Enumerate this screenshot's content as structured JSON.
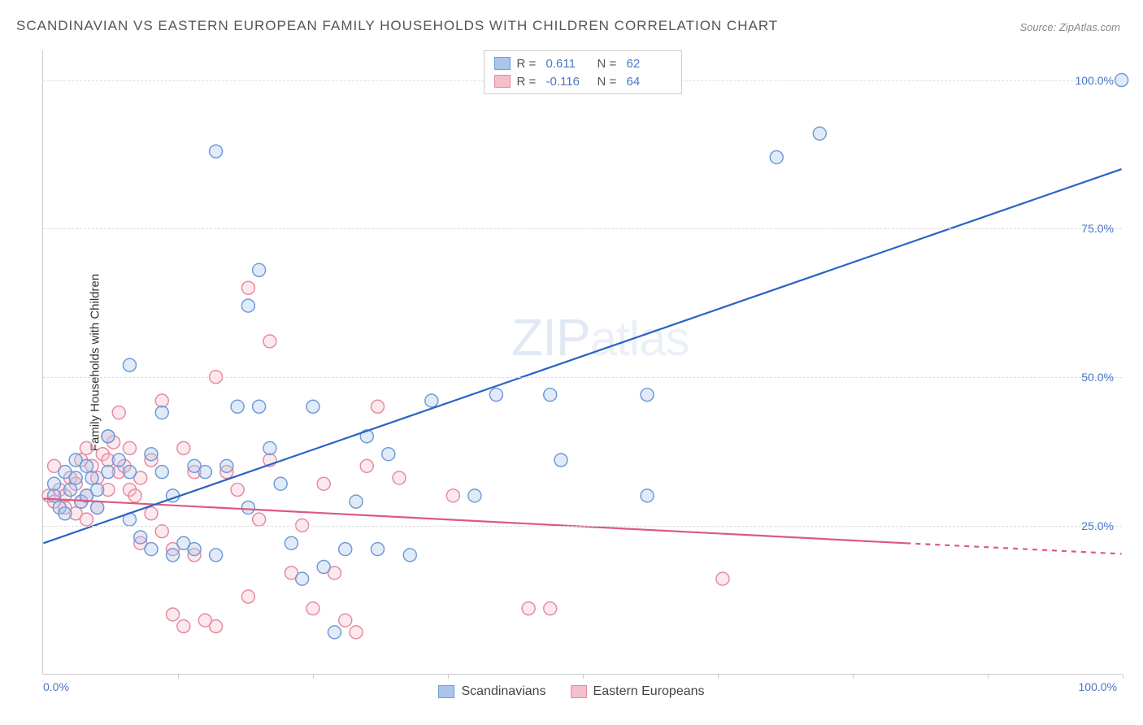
{
  "title": "SCANDINAVIAN VS EASTERN EUROPEAN FAMILY HOUSEHOLDS WITH CHILDREN CORRELATION CHART",
  "source": "Source: ZipAtlas.com",
  "ylabel": "Family Households with Children",
  "watermark_main": "ZIP",
  "watermark_suffix": "atlas",
  "chart": {
    "type": "scatter",
    "xlim": [
      0,
      100
    ],
    "ylim": [
      0,
      105
    ],
    "xtick_labels": {
      "min": "0.0%",
      "max": "100.0%"
    },
    "xtick_positions": [
      0,
      12.5,
      25,
      37.5,
      50,
      62.5,
      75,
      87.5,
      100
    ],
    "ytick_positions": [
      25,
      50,
      75,
      100
    ],
    "ytick_labels": [
      "25.0%",
      "50.0%",
      "75.0%",
      "100.0%"
    ],
    "grid_color": "#dddddd",
    "background_color": "#ffffff",
    "marker_radius": 8,
    "marker_stroke_width": 1.5,
    "marker_fill_opacity": 0.35,
    "line_width": 2.2
  },
  "series": {
    "scandinavians": {
      "label": "Scandinavians",
      "color_fill": "#a9c5ea",
      "color_stroke": "#6f9bd8",
      "line_color": "#2a63c4",
      "r_label": "R =",
      "r_value": "0.611",
      "n_label": "N =",
      "n_value": "62",
      "trend": {
        "x1": 0,
        "y1": 22,
        "x2": 100,
        "y2": 85,
        "dashed": false
      },
      "points": [
        [
          1,
          30
        ],
        [
          1,
          32
        ],
        [
          1.5,
          28
        ],
        [
          2,
          34
        ],
        [
          2,
          27
        ],
        [
          2.5,
          31
        ],
        [
          3,
          33
        ],
        [
          3,
          36
        ],
        [
          3.5,
          29
        ],
        [
          4,
          35
        ],
        [
          4,
          30
        ],
        [
          4.5,
          33
        ],
        [
          5,
          31
        ],
        [
          5,
          28
        ],
        [
          6,
          34
        ],
        [
          6,
          40
        ],
        [
          7,
          36
        ],
        [
          8,
          34
        ],
        [
          8,
          26
        ],
        [
          9,
          23
        ],
        [
          10,
          21
        ],
        [
          10,
          37
        ],
        [
          11,
          34
        ],
        [
          12,
          20
        ],
        [
          12,
          30
        ],
        [
          13,
          22
        ],
        [
          14,
          21
        ],
        [
          14,
          35
        ],
        [
          15,
          34
        ],
        [
          16,
          20
        ],
        [
          16,
          88
        ],
        [
          17,
          35
        ],
        [
          18,
          45
        ],
        [
          19,
          28
        ],
        [
          19,
          62
        ],
        [
          20,
          68
        ],
        [
          20,
          45
        ],
        [
          21,
          38
        ],
        [
          22,
          32
        ],
        [
          23,
          22
        ],
        [
          24,
          16
        ],
        [
          25,
          45
        ],
        [
          26,
          18
        ],
        [
          27,
          7
        ],
        [
          28,
          21
        ],
        [
          29,
          29
        ],
        [
          30,
          40
        ],
        [
          31,
          21
        ],
        [
          32,
          37
        ],
        [
          34,
          20
        ],
        [
          36,
          46
        ],
        [
          40,
          30
        ],
        [
          42,
          47
        ],
        [
          47,
          47
        ],
        [
          48,
          36
        ],
        [
          56,
          30
        ],
        [
          56,
          47
        ],
        [
          68,
          87
        ],
        [
          72,
          91
        ],
        [
          100,
          100
        ],
        [
          8,
          52
        ],
        [
          11,
          44
        ]
      ]
    },
    "eastern": {
      "label": "Eastern Europeans",
      "color_fill": "#f3bfcb",
      "color_stroke": "#e88aa1",
      "line_color": "#dc5a7d",
      "r_label": "R =",
      "r_value": "-0.116",
      "n_label": "N =",
      "n_value": "64",
      "trend": {
        "x1": 0,
        "y1": 29.5,
        "x2": 80,
        "y2": 22,
        "dashed": false
      },
      "trend_ext": {
        "x1": 80,
        "y1": 22,
        "x2": 100,
        "y2": 20.2,
        "dashed": true
      },
      "points": [
        [
          0.5,
          30
        ],
        [
          1,
          29
        ],
        [
          1,
          35
        ],
        [
          1.5,
          31
        ],
        [
          2,
          28
        ],
        [
          2,
          30
        ],
        [
          2.5,
          33
        ],
        [
          3,
          27
        ],
        [
          3,
          32
        ],
        [
          3.5,
          36
        ],
        [
          3.5,
          29
        ],
        [
          4,
          30
        ],
        [
          4,
          38
        ],
        [
          4.5,
          35
        ],
        [
          5,
          33
        ],
        [
          5,
          28
        ],
        [
          5.5,
          37
        ],
        [
          6,
          31
        ],
        [
          6,
          36
        ],
        [
          6.5,
          39
        ],
        [
          7,
          34
        ],
        [
          7,
          44
        ],
        [
          7.5,
          35
        ],
        [
          8,
          31
        ],
        [
          8,
          38
        ],
        [
          8.5,
          30
        ],
        [
          9,
          33
        ],
        [
          9,
          22
        ],
        [
          10,
          36
        ],
        [
          10,
          27
        ],
        [
          11,
          46
        ],
        [
          11,
          24
        ],
        [
          12,
          21
        ],
        [
          12,
          10
        ],
        [
          13,
          38
        ],
        [
          13,
          8
        ],
        [
          14,
          20
        ],
        [
          14,
          34
        ],
        [
          15,
          9
        ],
        [
          16,
          8
        ],
        [
          16,
          50
        ],
        [
          17,
          34
        ],
        [
          18,
          31
        ],
        [
          19,
          13
        ],
        [
          19,
          65
        ],
        [
          20,
          26
        ],
        [
          21,
          36
        ],
        [
          21,
          56
        ],
        [
          23,
          17
        ],
        [
          24,
          25
        ],
        [
          25,
          11
        ],
        [
          26,
          32
        ],
        [
          27,
          17
        ],
        [
          28,
          9
        ],
        [
          29,
          7
        ],
        [
          30,
          35
        ],
        [
          31,
          45
        ],
        [
          33,
          33
        ],
        [
          38,
          30
        ],
        [
          45,
          11
        ],
        [
          47,
          11
        ],
        [
          63,
          16
        ],
        [
          6,
          40
        ],
        [
          4,
          26
        ]
      ]
    }
  }
}
